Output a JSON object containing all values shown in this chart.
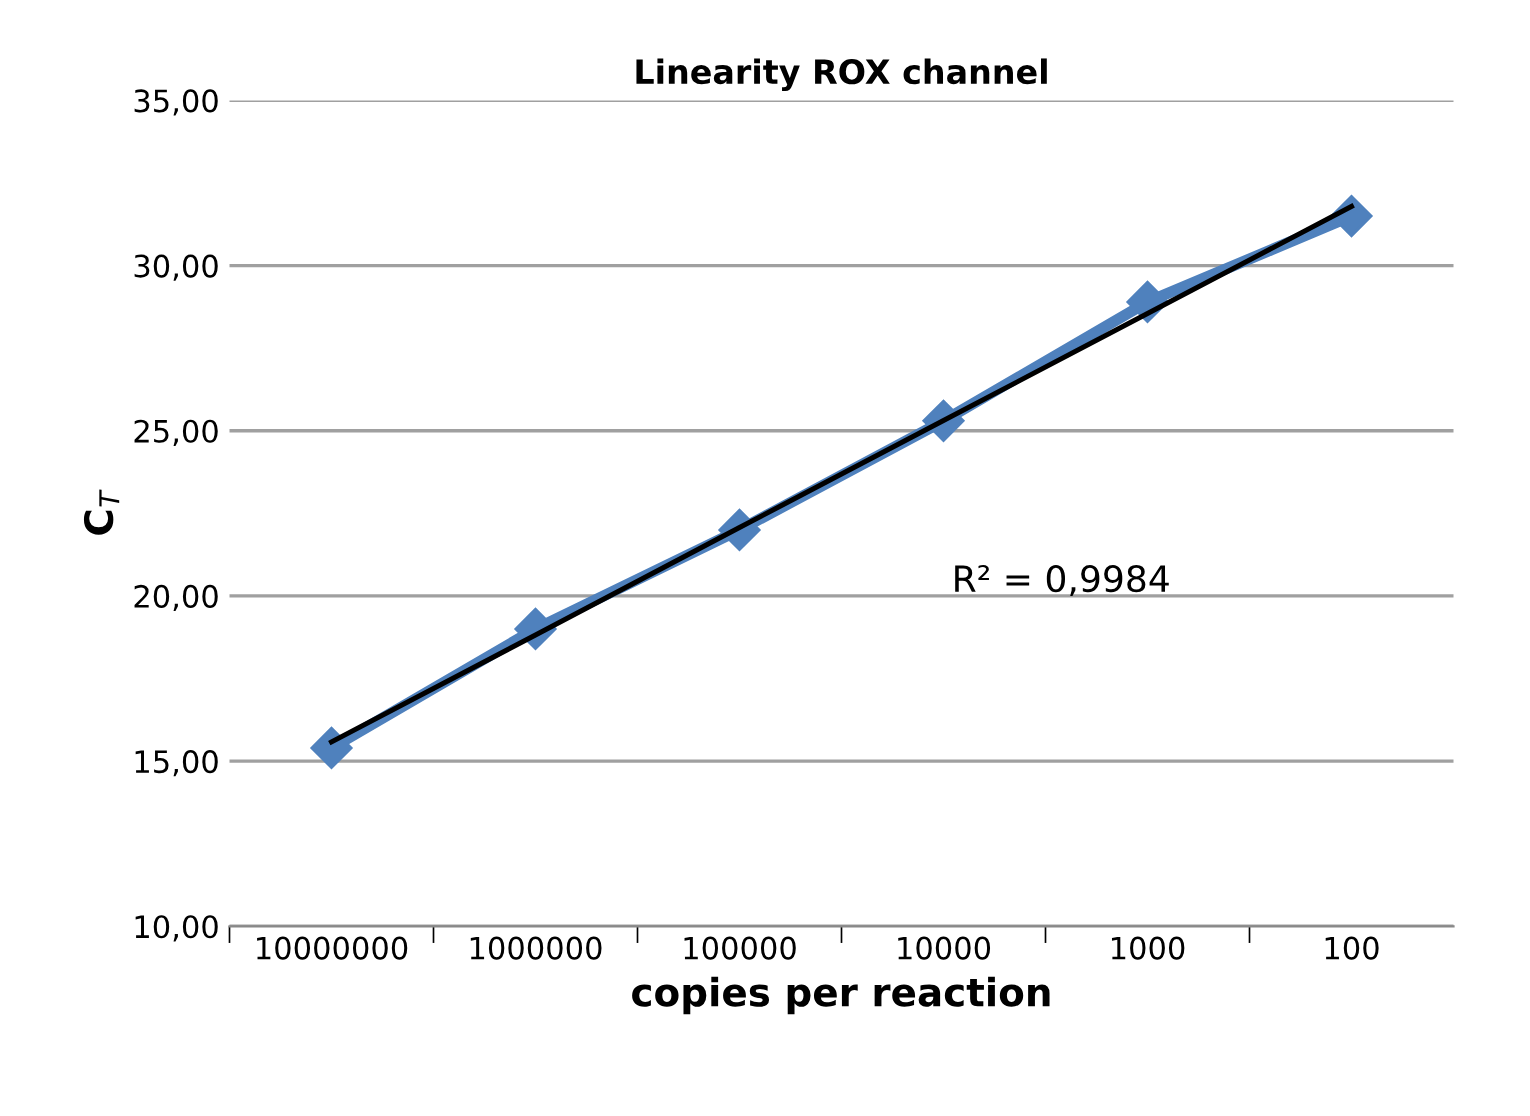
{
  "chart_data": {
    "type": "line",
    "title": "Linearity ROX channel",
    "xlabel": "copies per reaction",
    "ylabel": "C$_{T}$",
    "categories": [
      "10000000",
      "1000000",
      "100000",
      "10000",
      "1000",
      "100"
    ],
    "series": [
      {
        "color": "#4f81bd",
        "values": [
          15.4,
          19.0,
          22.0,
          25.3,
          28.9,
          31.5
        ],
        "marker": "diamond"
      },
      {
        "type": "line",
        "color": "#000000",
        "values": [
          15.58,
          18.82,
          22.07,
          25.31,
          28.55,
          31.79
        ],
        "marker": "none"
      }
    ],
    "ylim": [
      10,
      35
    ],
    "yticks": [
      {
        "value": 10,
        "label": "10,00"
      },
      {
        "value": 15,
        "label": "15,00"
      },
      {
        "value": 20,
        "label": "20,00"
      },
      {
        "value": 25,
        "label": "25,00"
      },
      {
        "value": 30,
        "label": "30,00"
      },
      {
        "value": 35,
        "label": "35,00"
      }
    ],
    "grid": "y",
    "legend": false,
    "annotations": [
      "R² = 0,9984"
    ]
  }
}
